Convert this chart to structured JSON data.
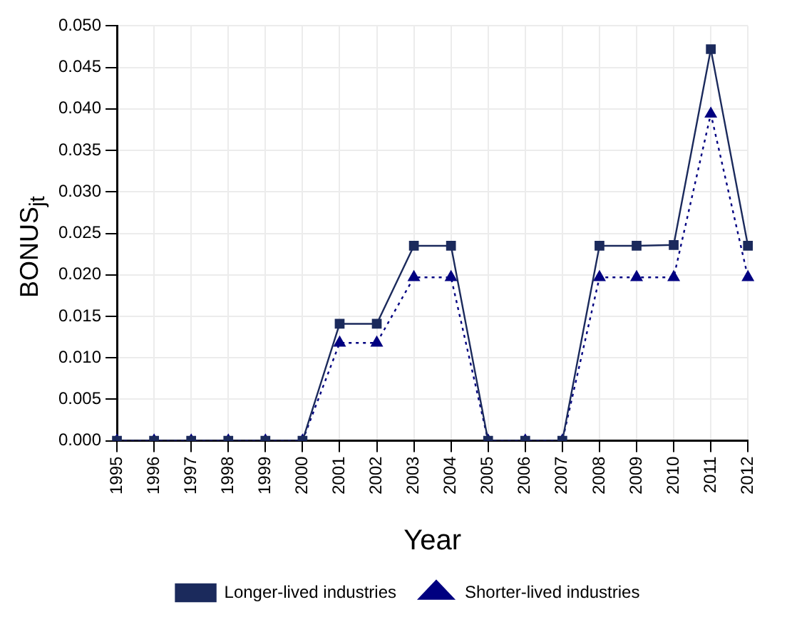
{
  "chart_data": {
    "type": "line",
    "xlabel": "Year",
    "ylabel": "BONUS$_{jt}$",
    "categories": [
      "1995",
      "1996",
      "1997",
      "1998",
      "1999",
      "2000",
      "2001",
      "2002",
      "2003",
      "2004",
      "2005",
      "2006",
      "2007",
      "2008",
      "2009",
      "2010",
      "2011",
      "2012"
    ],
    "series": [
      {
        "name": "Longer-lived industries",
        "color": "#1b2a5c",
        "marker": "square",
        "line_style": "solid",
        "values": [
          0,
          0,
          0,
          0,
          0,
          0,
          0.0141,
          0.0141,
          0.0235,
          0.0235,
          0,
          0,
          0,
          0.0235,
          0.0235,
          0.0236,
          0.0472,
          0.0235
        ]
      },
      {
        "name": "Shorter-lived industries",
        "color": "#000080",
        "marker": "triangle",
        "line_style": "dotted",
        "values": [
          0,
          0,
          0,
          0,
          0,
          0,
          0.0118,
          0.0118,
          0.0197,
          0.0197,
          0,
          0,
          0,
          0.0197,
          0.0197,
          0.0197,
          0.0394,
          0.0197
        ]
      }
    ],
    "ylim": [
      0,
      0.05
    ],
    "yticks": [
      {
        "value": 0,
        "label": "0.000"
      },
      {
        "value": 0.005,
        "label": "0.005"
      },
      {
        "value": 0.01,
        "label": "0.010"
      },
      {
        "value": 0.015,
        "label": "0.015"
      },
      {
        "value": 0.02,
        "label": "0.020"
      },
      {
        "value": 0.025,
        "label": "0.025"
      },
      {
        "value": 0.03,
        "label": "0.030"
      },
      {
        "value": 0.035,
        "label": "0.035"
      },
      {
        "value": 0.04,
        "label": "0.040"
      },
      {
        "value": 0.045,
        "label": "0.045"
      },
      {
        "value": 0.05,
        "label": "0.050"
      }
    ],
    "grid": true,
    "legend": "bottom"
  }
}
